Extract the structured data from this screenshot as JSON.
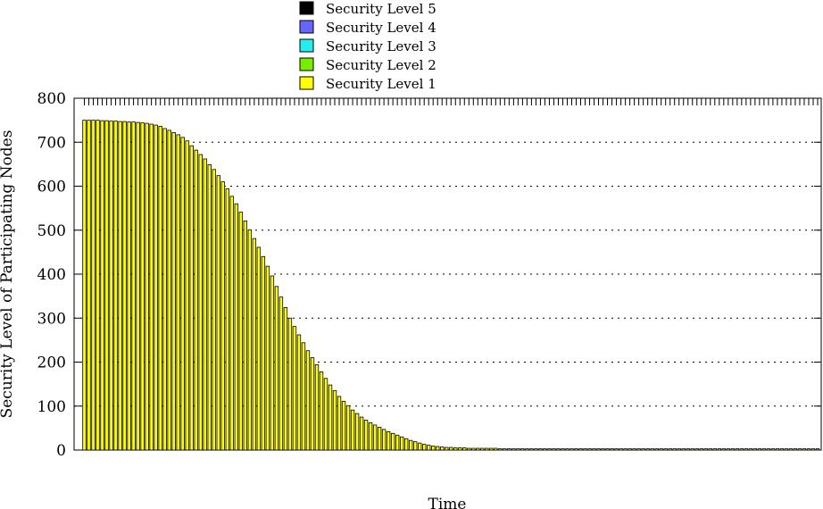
{
  "chart_data": {
    "type": "bar",
    "stacked": true,
    "title": "",
    "xlabel": "Time",
    "ylabel": "Security Level of Participating Nodes",
    "ylim": [
      0,
      800
    ],
    "yticks": [
      "0",
      "100",
      "200",
      "300",
      "400",
      "500",
      "600",
      "700",
      "800"
    ],
    "grid": "horizontal dotted",
    "legend_position": "top-center",
    "legend": [
      {
        "label": "Security Level 5",
        "color": "#000000"
      },
      {
        "label": "Security Level 4",
        "color": "#6666ff"
      },
      {
        "label": "Security Level 3",
        "color": "#22eeee"
      },
      {
        "label": "Security Level 2",
        "color": "#77ee00"
      },
      {
        "label": "Security Level 1",
        "color": "#ffff00"
      }
    ],
    "series": [
      {
        "name": "Security Level 1",
        "color": "#ffff00",
        "values": [
          750,
          750,
          750,
          750,
          749,
          749,
          748,
          748,
          747,
          747,
          746,
          746,
          745,
          744,
          743,
          741,
          739,
          736,
          731,
          727,
          722,
          717,
          711,
          703,
          692,
          682,
          672,
          662,
          649,
          638,
          624,
          610,
          594,
          577,
          560,
          541,
          521,
          501,
          481,
          461,
          440,
          418,
          396,
          372,
          348,
          324,
          300,
          281,
          262,
          244,
          226,
          210,
          194,
          178,
          163,
          148,
          135,
          122,
          111,
          101,
          91,
          83,
          75,
          68,
          62,
          57,
          52,
          47,
          42,
          38,
          34,
          30,
          26,
          22,
          19,
          16,
          13,
          11,
          9,
          8,
          7,
          6,
          6,
          5,
          5,
          5,
          4,
          4,
          4,
          4,
          4,
          4,
          4,
          3,
          3,
          3,
          3,
          3,
          3,
          3,
          3,
          3,
          3,
          3,
          3,
          3,
          3,
          3,
          3,
          3,
          3,
          3,
          3,
          3,
          3,
          3,
          3,
          3,
          3,
          3,
          3,
          3,
          3,
          3,
          3,
          3,
          3,
          3,
          3,
          3,
          3,
          3,
          3,
          3,
          3,
          3,
          3,
          3,
          3,
          3,
          3,
          3,
          3,
          3,
          3,
          3,
          3,
          3,
          3,
          3,
          3,
          3,
          3,
          3,
          3,
          3,
          3,
          3,
          3,
          3,
          3,
          3,
          3,
          3,
          3
        ]
      }
    ]
  }
}
